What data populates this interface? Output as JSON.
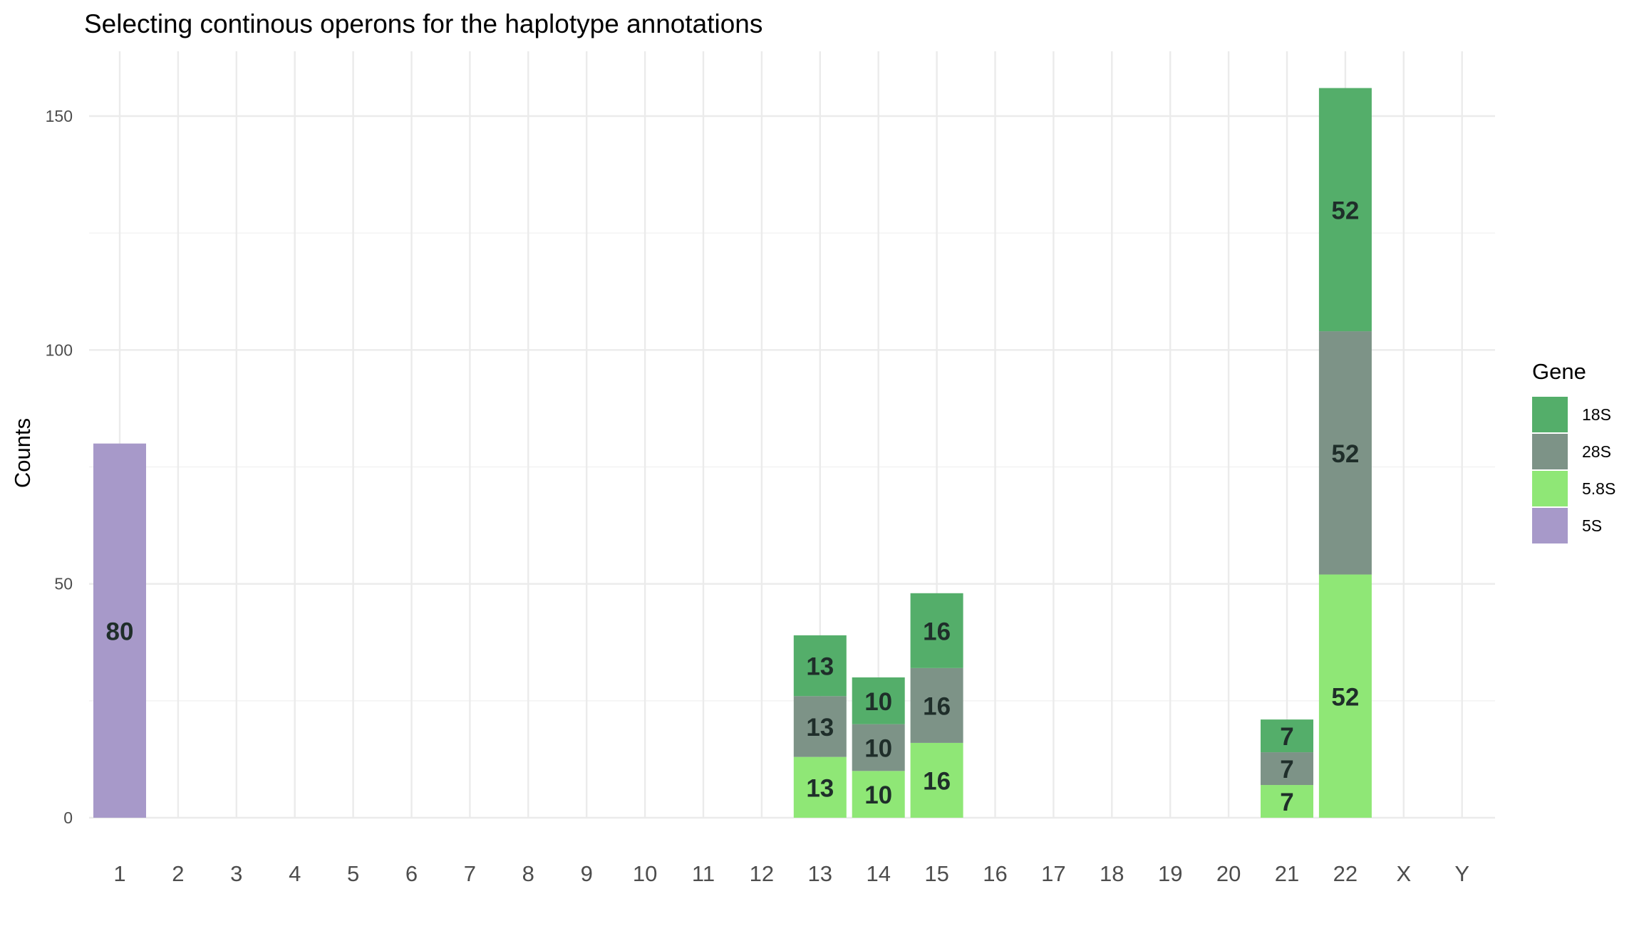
{
  "chart_data": {
    "type": "bar",
    "stacked": true,
    "title": "Selecting continous operons for the haplotype annotations",
    "xlabel": "",
    "ylabel": "Counts",
    "ylim": [
      0,
      160
    ],
    "yticks": [
      0,
      50,
      100,
      150
    ],
    "grid": true,
    "legend": {
      "title": "Gene",
      "position": "right"
    },
    "categories": [
      "1",
      "2",
      "3",
      "4",
      "5",
      "6",
      "7",
      "8",
      "9",
      "10",
      "11",
      "12",
      "13",
      "14",
      "15",
      "16",
      "17",
      "18",
      "19",
      "20",
      "21",
      "22",
      "X",
      "Y"
    ],
    "stack_order": [
      "5.8S",
      "28S",
      "18S",
      "5S"
    ],
    "series": [
      {
        "name": "18S",
        "color": "#54ae6a",
        "values": [
          0,
          0,
          0,
          0,
          0,
          0,
          0,
          0,
          0,
          0,
          0,
          0,
          13,
          10,
          16,
          0,
          0,
          0,
          0,
          0,
          7,
          52,
          0,
          0
        ]
      },
      {
        "name": "28S",
        "color": "#7d9387",
        "values": [
          0,
          0,
          0,
          0,
          0,
          0,
          0,
          0,
          0,
          0,
          0,
          0,
          13,
          10,
          16,
          0,
          0,
          0,
          0,
          0,
          7,
          52,
          0,
          0
        ]
      },
      {
        "name": "5.8S",
        "color": "#8fe776",
        "values": [
          0,
          0,
          0,
          0,
          0,
          0,
          0,
          0,
          0,
          0,
          0,
          0,
          13,
          10,
          16,
          0,
          0,
          0,
          0,
          0,
          7,
          52,
          0,
          0
        ]
      },
      {
        "name": "5S",
        "color": "#a799c9",
        "values": [
          80,
          0,
          0,
          0,
          0,
          0,
          0,
          0,
          0,
          0,
          0,
          0,
          0,
          0,
          0,
          0,
          0,
          0,
          0,
          0,
          0,
          0,
          0,
          0
        ]
      }
    ]
  }
}
